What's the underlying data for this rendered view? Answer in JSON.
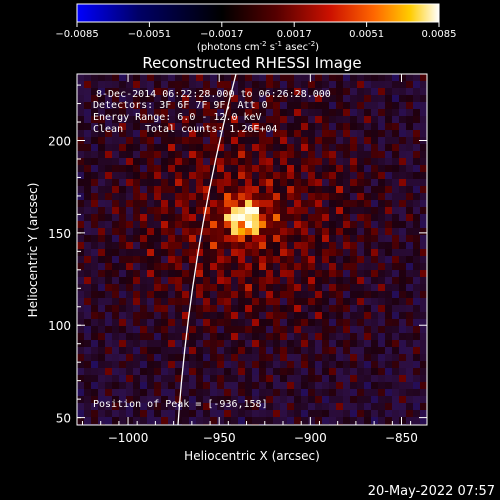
{
  "colorbar": {
    "ticks": [
      "-0.0085",
      "-0.0051",
      "-0.0017",
      "0.0017",
      "0.0051",
      "0.0085"
    ],
    "units_main": "(photons cm",
    "units_sup1": "-2",
    "units_mid1": " s",
    "units_sup2": "-1",
    "units_mid2": " asec",
    "units_sup3": "-2",
    "units_end": ")",
    "colors": [
      "#0000ff",
      "#000033",
      "#000000",
      "#330000",
      "#aa0000",
      "#ff5500",
      "#ffcc00",
      "#ffffff"
    ]
  },
  "title": "Reconstructed RHESSI Image",
  "info": {
    "line1": "8-Dec-2014 06:22:28.000 to 06:26:28.000",
    "line2": "Detectors: 3F 6F 7F 9F, Att 0",
    "line3": "Energy Range: 6.0 - 12.0 keV",
    "line4_a": "Clean",
    "line4_b": "Total counts: 1.26E+04"
  },
  "peak_label": "Position of Peak = [-936,158]",
  "axes": {
    "xlabel": "Heliocentric X (arcsec)",
    "ylabel": "Heliocentric Y (arcsec)",
    "xticks": [
      {
        "v": -1000,
        "label": "−1000"
      },
      {
        "v": -950,
        "label": "−950"
      },
      {
        "v": -900,
        "label": "−900"
      },
      {
        "v": -850,
        "label": "−850"
      }
    ],
    "yticks": [
      {
        "v": 50,
        "label": "50"
      },
      {
        "v": 100,
        "label": "100"
      },
      {
        "v": 150,
        "label": "150"
      },
      {
        "v": 200,
        "label": "200"
      }
    ],
    "xlim": [
      -1028,
      -836
    ],
    "ylim": [
      46,
      236
    ]
  },
  "image": {
    "peak_x": -936,
    "peak_y": 158
  },
  "timestamp": "20-May-2022 07:57"
}
